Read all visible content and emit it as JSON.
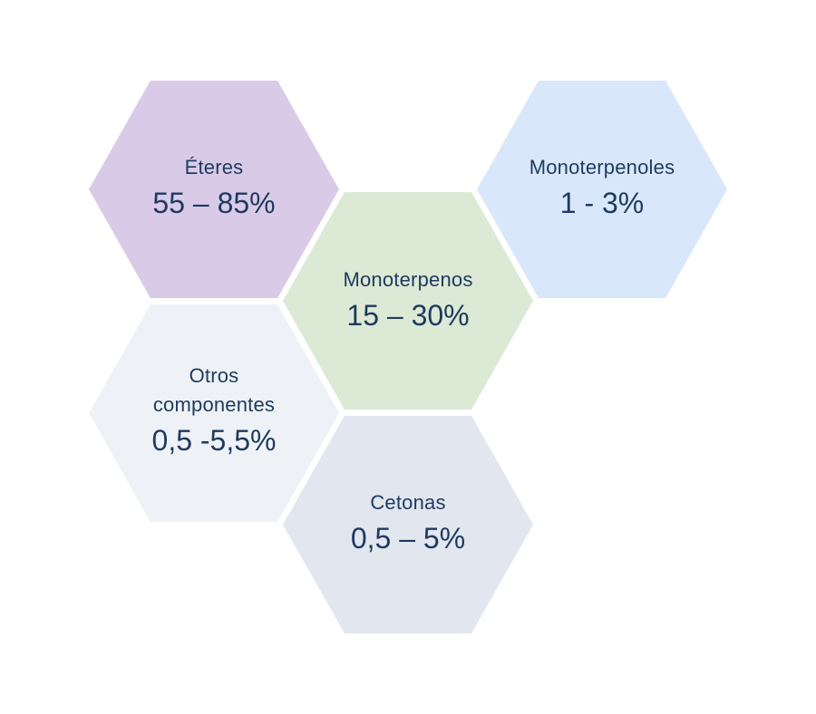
{
  "hexagons": {
    "eteres": {
      "label": "Éteres",
      "value": "55 – 85%",
      "color": "#d9cbe8"
    },
    "monoterpenoles": {
      "label": "Monoterpenoles",
      "value": "1 - 3%",
      "color": "#d8e8fa"
    },
    "monoterpenos": {
      "label": "Monoterpenos",
      "value": "15 – 30%",
      "color": "#dce9d5"
    },
    "otros": {
      "label_line1": "Otros",
      "label_line2": "componentes",
      "value": "0,5 -5,5%",
      "color": "#eef2f6"
    },
    "cetonas": {
      "label": "Cetonas",
      "value": "0,5 – 5%",
      "color": "#e1e6ef"
    }
  }
}
